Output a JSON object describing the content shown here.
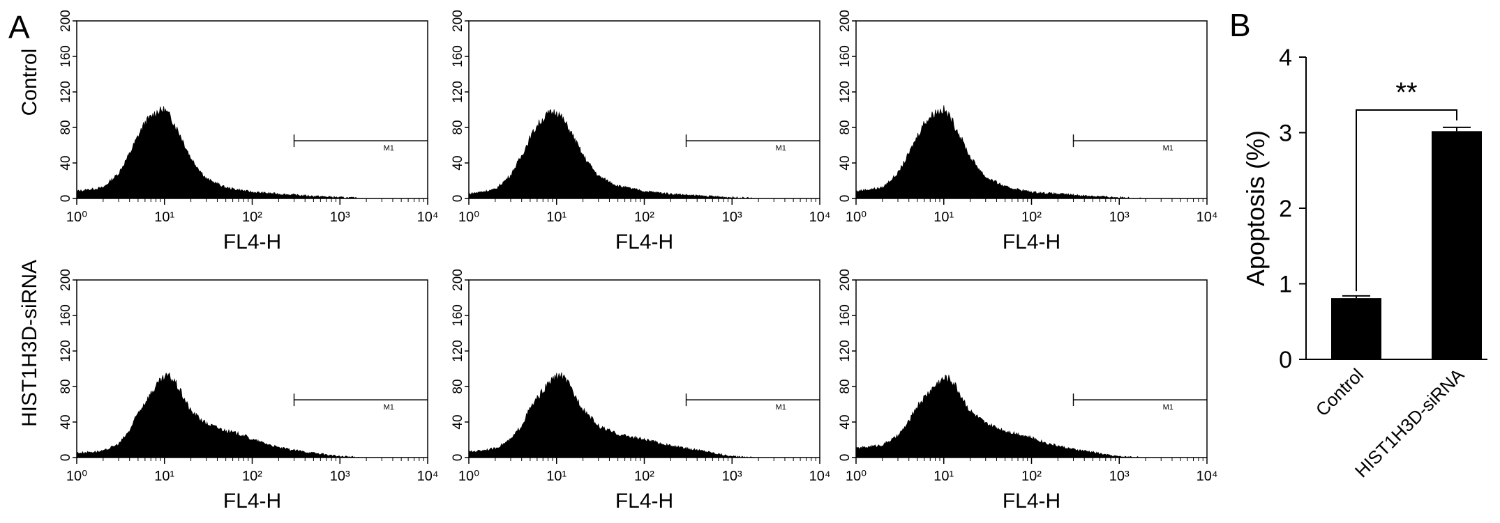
{
  "figure": {
    "panel_a_letter": "A",
    "panel_b_letter": "B"
  },
  "chart_data": [
    {
      "type": "area",
      "id": "histogram-grid",
      "row_labels": [
        "Control",
        "HIST1H3D-siRNA"
      ],
      "xlabel": "FL4-H",
      "x_scale": "log",
      "xlim": [
        1,
        10000
      ],
      "x_ticks": [
        1,
        10,
        100,
        1000,
        10000
      ],
      "ylim": [
        0,
        200
      ],
      "y_ticks": [
        0,
        40,
        80,
        120,
        160,
        200
      ],
      "marker_label": "M1",
      "marker_range": [
        300,
        10000
      ],
      "histograms": [
        {
          "row": 0,
          "col": 0,
          "peak_x": 9,
          "peak_y": 100,
          "tail": 0.05,
          "points": [
            [
              1,
              8
            ],
            [
              2,
              12
            ],
            [
              3,
              28
            ],
            [
              4,
              50
            ],
            [
              5,
              70
            ],
            [
              6,
              85
            ],
            [
              8,
              97
            ],
            [
              10,
              100
            ],
            [
              12,
              90
            ],
            [
              15,
              72
            ],
            [
              20,
              45
            ],
            [
              30,
              22
            ],
            [
              50,
              12
            ],
            [
              100,
              7
            ],
            [
              200,
              5
            ],
            [
              400,
              3
            ],
            [
              1000,
              1
            ],
            [
              2000,
              0
            ]
          ]
        },
        {
          "row": 0,
          "col": 1,
          "peak_x": 9,
          "peak_y": 98,
          "tail": 0.06,
          "points": [
            [
              1,
              5
            ],
            [
              2,
              10
            ],
            [
              3,
              26
            ],
            [
              4,
              48
            ],
            [
              5,
              68
            ],
            [
              6,
              82
            ],
            [
              8,
              95
            ],
            [
              10,
              98
            ],
            [
              12,
              88
            ],
            [
              15,
              72
            ],
            [
              20,
              48
            ],
            [
              30,
              25
            ],
            [
              50,
              14
            ],
            [
              100,
              8
            ],
            [
              200,
              5
            ],
            [
              400,
              3
            ],
            [
              1000,
              1
            ],
            [
              2000,
              0
            ]
          ]
        },
        {
          "row": 0,
          "col": 2,
          "peak_x": 9,
          "peak_y": 100,
          "tail": 0.05,
          "points": [
            [
              1,
              8
            ],
            [
              2,
              12
            ],
            [
              3,
              28
            ],
            [
              4,
              50
            ],
            [
              5,
              70
            ],
            [
              6,
              85
            ],
            [
              8,
              97
            ],
            [
              10,
              100
            ],
            [
              12,
              90
            ],
            [
              15,
              72
            ],
            [
              20,
              46
            ],
            [
              30,
              24
            ],
            [
              50,
              13
            ],
            [
              100,
              7
            ],
            [
              200,
              5
            ],
            [
              400,
              3
            ],
            [
              1000,
              1
            ],
            [
              2000,
              0
            ]
          ]
        },
        {
          "row": 1,
          "col": 0,
          "peak_x": 11,
          "peak_y": 92,
          "tail": 0.18,
          "points": [
            [
              1,
              5
            ],
            [
              2,
              7
            ],
            [
              3,
              15
            ],
            [
              4,
              30
            ],
            [
              5,
              50
            ],
            [
              7,
              72
            ],
            [
              9,
              86
            ],
            [
              11,
              92
            ],
            [
              13,
              86
            ],
            [
              16,
              70
            ],
            [
              20,
              52
            ],
            [
              30,
              38
            ],
            [
              50,
              30
            ],
            [
              80,
              25
            ],
            [
              100,
              20
            ],
            [
              150,
              15
            ],
            [
              200,
              11
            ],
            [
              300,
              8
            ],
            [
              500,
              5
            ],
            [
              700,
              3
            ],
            [
              1000,
              1
            ],
            [
              2000,
              0
            ]
          ]
        },
        {
          "row": 1,
          "col": 1,
          "peak_x": 11,
          "peak_y": 93,
          "tail": 0.18,
          "points": [
            [
              1,
              6
            ],
            [
              2,
              10
            ],
            [
              3,
              20
            ],
            [
              4,
              36
            ],
            [
              5,
              55
            ],
            [
              7,
              75
            ],
            [
              9,
              88
            ],
            [
              11,
              93
            ],
            [
              13,
              86
            ],
            [
              16,
              70
            ],
            [
              20,
              55
            ],
            [
              30,
              35
            ],
            [
              50,
              26
            ],
            [
              80,
              22
            ],
            [
              100,
              20
            ],
            [
              150,
              16
            ],
            [
              200,
              13
            ],
            [
              300,
              10
            ],
            [
              500,
              7
            ],
            [
              700,
              4
            ],
            [
              1000,
              1
            ],
            [
              2000,
              0
            ]
          ]
        },
        {
          "row": 1,
          "col": 2,
          "peak_x": 11,
          "peak_y": 90,
          "tail": 0.14,
          "points": [
            [
              1,
              10
            ],
            [
              2,
              14
            ],
            [
              3,
              24
            ],
            [
              4,
              40
            ],
            [
              5,
              58
            ],
            [
              7,
              75
            ],
            [
              9,
              86
            ],
            [
              11,
              90
            ],
            [
              13,
              84
            ],
            [
              16,
              68
            ],
            [
              20,
              52
            ],
            [
              30,
              38
            ],
            [
              50,
              30
            ],
            [
              80,
              25
            ],
            [
              100,
              22
            ],
            [
              150,
              16
            ],
            [
              200,
              13
            ],
            [
              300,
              9
            ],
            [
              500,
              6
            ],
            [
              700,
              3
            ],
            [
              1000,
              1
            ],
            [
              2000,
              0
            ]
          ]
        }
      ]
    },
    {
      "type": "bar",
      "id": "apoptosis-bar",
      "categories": [
        "Control",
        "HIST1H3D-siRNA"
      ],
      "values": [
        0.81,
        3.02
      ],
      "errors": [
        0.03,
        0.05
      ],
      "ylabel": "Apoptosis (%)",
      "ylim": [
        0,
        4
      ],
      "y_ticks": [
        0,
        1,
        2,
        3,
        4
      ],
      "significance": "**"
    }
  ]
}
